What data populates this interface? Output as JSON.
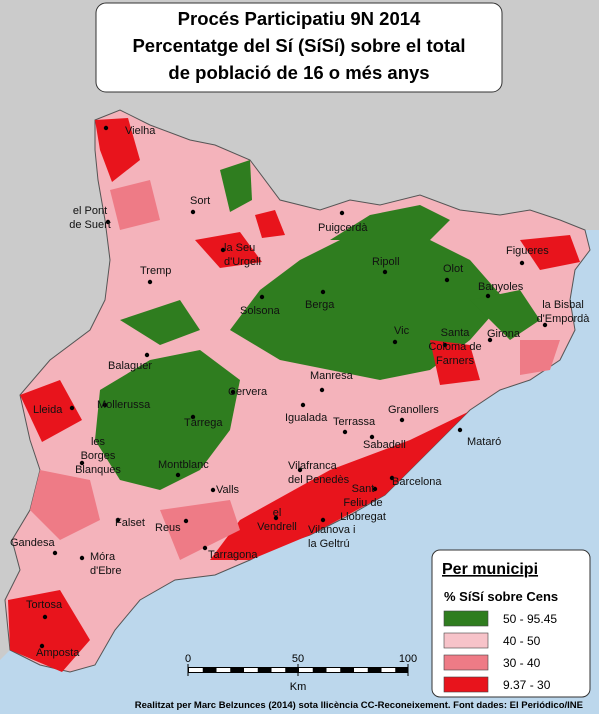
{
  "title": [
    "Procés Participatiu 9N 2014",
    "Percentatge del Sí (SíSí) sobre el total",
    "de població de 16 o més anys"
  ],
  "places": [
    {
      "lines": [
        "Vielha"
      ]
    },
    {
      "lines": [
        "el Pont",
        "de Suert"
      ]
    },
    {
      "lines": [
        "Sort"
      ]
    },
    {
      "lines": [
        "la Seu",
        "d'Urgell"
      ]
    },
    {
      "lines": [
        "Puigcerdà"
      ]
    },
    {
      "lines": [
        "Tremp"
      ]
    },
    {
      "lines": [
        "Ripoll"
      ]
    },
    {
      "lines": [
        "Olot"
      ]
    },
    {
      "lines": [
        "Figueres"
      ]
    },
    {
      "lines": [
        "Banyoles"
      ]
    },
    {
      "lines": [
        "la Bisbal",
        "d'Empordà"
      ]
    },
    {
      "lines": [
        "Solsona"
      ]
    },
    {
      "lines": [
        "Berga"
      ]
    },
    {
      "lines": [
        "Balaguer"
      ]
    },
    {
      "lines": [
        "Vic"
      ]
    },
    {
      "lines": [
        "Santa",
        "Coloma de",
        "Farners"
      ]
    },
    {
      "lines": [
        "Girona"
      ]
    },
    {
      "lines": [
        "Manresa"
      ]
    },
    {
      "lines": [
        "Lleida"
      ]
    },
    {
      "lines": [
        "Mollerussa"
      ]
    },
    {
      "lines": [
        "Cervera"
      ]
    },
    {
      "lines": [
        "Igualada"
      ]
    },
    {
      "lines": [
        "Tàrrega"
      ]
    },
    {
      "lines": [
        "Granollers"
      ]
    },
    {
      "lines": [
        "Terrassa"
      ]
    },
    {
      "lines": [
        "Sabadell"
      ]
    },
    {
      "lines": [
        "les",
        "Borges",
        "Blanques"
      ]
    },
    {
      "lines": [
        "Mataró"
      ]
    },
    {
      "lines": [
        "Montblanc"
      ]
    },
    {
      "lines": [
        "Vilafranca",
        "del Penedès"
      ]
    },
    {
      "lines": [
        "Barcelona"
      ]
    },
    {
      "lines": [
        "Valls"
      ]
    },
    {
      "lines": [
        "Sant",
        "Feliu de",
        "Llobregat"
      ]
    },
    {
      "lines": [
        "Falset"
      ]
    },
    {
      "lines": [
        "Reus"
      ]
    },
    {
      "lines": [
        "el",
        "Vendrell"
      ]
    },
    {
      "lines": [
        "Vilanova i",
        "la Geltrú"
      ]
    },
    {
      "lines": [
        "Tarragona"
      ]
    },
    {
      "lines": [
        "Gandesa"
      ]
    },
    {
      "lines": [
        "Móra",
        "d'Ebre"
      ]
    },
    {
      "lines": [
        "Tortosa"
      ]
    },
    {
      "lines": [
        "Amposta"
      ]
    }
  ],
  "legend": {
    "title": "Per municipi",
    "subtitle": "% SíSí sobre Cens",
    "items": [
      {
        "label": "50 - 95.45",
        "color": "#2f7d1f"
      },
      {
        "label": "40 - 50",
        "color": "#f7c3c9"
      },
      {
        "label": "30 - 40",
        "color": "#ee7b86"
      },
      {
        "label": "9.37 - 30",
        "color": "#e8141c"
      }
    ]
  },
  "scale": {
    "ticks": [
      0,
      50,
      100
    ],
    "unit": "Km"
  },
  "credit": "Realitzat per Marc Belzunces (2014) sota llicència CC-Reconeixement. Font dades: El Periódico/INE"
}
